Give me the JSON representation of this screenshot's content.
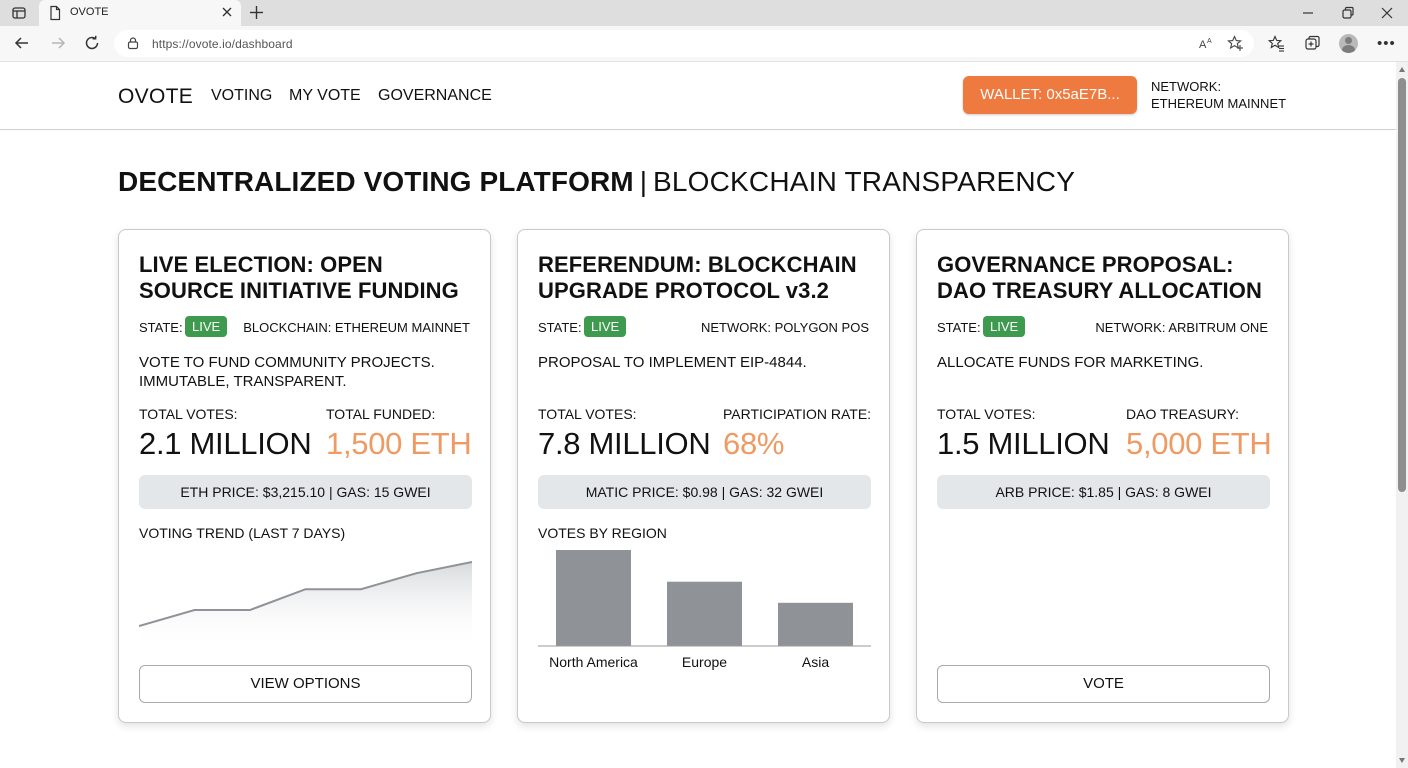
{
  "browser": {
    "tab_title": "OVOTE",
    "url": "https://ovote.io/dashboard"
  },
  "header": {
    "logo": "OVOTE",
    "nav": [
      "VOTING",
      "MY VOTE",
      "GOVERNANCE"
    ],
    "wallet_label": "WALLET: 0x5aE7B...",
    "network_line1": "NETWORK:",
    "network_line2": "ETHEREUM MAINNET"
  },
  "page": {
    "title_strong": "DECENTRALIZED VOTING PLATFORM",
    "title_sep": "|",
    "title_light": "BLOCKCHAIN TRANSPARENCY"
  },
  "cards": [
    {
      "title": "LIVE ELECTION: OPEN SOURCE INITIATIVE FUNDING",
      "state_label": "STATE:",
      "state": "LIVE",
      "chain": "BLOCKCHAIN: ETHEREUM MAINNET",
      "description": "VOTE TO FUND COMMUNITY PROJECTS. IMMUTABLE, TRANSPARENT.",
      "stat1_label": "TOTAL VOTES:",
      "stat1_value": "2.1 MILLION",
      "stat2_label": "TOTAL FUNDED:",
      "stat2_value": "1,500 ETH",
      "price_bar": "ETH PRICE: $3,215.10  |  GAS: 15 GWEI",
      "chart_title": "VOTING TREND (LAST 7 DAYS)",
      "button": "VIEW OPTIONS"
    },
    {
      "title": "REFERENDUM: BLOCKCHAIN UPGRADE PROTOCOL v3.2",
      "state_label": "STATE:",
      "state": "LIVE",
      "chain": "NETWORK: POLYGON POS",
      "description": "PROPOSAL TO IMPLEMENT EIP-4844.",
      "stat1_label": "TOTAL VOTES:",
      "stat1_value": "7.8 MILLION",
      "stat2_label": "PARTICIPATION RATE:",
      "stat2_value": "68%",
      "price_bar": "MATIC PRICE: $0.98  |  GAS: 32 GWEI",
      "chart_title": "VOTES BY REGION"
    },
    {
      "title": "GOVERNANCE PROPOSAL: DAO TREASURY ALLOCATION",
      "state_label": "STATE:",
      "state": "LIVE",
      "chain": "NETWORK: ARBITRUM ONE",
      "description": "ALLOCATE FUNDS FOR MARKETING.",
      "stat1_label": "TOTAL VOTES:",
      "stat1_value": "1.5 MILLION",
      "stat2_label": "DAO TREASURY:",
      "stat2_value": "5,000 ETH",
      "price_bar": "ARB PRICE: $1.85  |  GAS: 8 GWEI",
      "button": "VOTE"
    }
  ],
  "charts": {
    "trend": {
      "type": "area",
      "values": [
        1,
        2,
        2,
        3.3,
        3.3,
        4.3,
        5
      ],
      "ylim": [
        0,
        5.5
      ]
    },
    "region": {
      "type": "bar",
      "categories": [
        "North America",
        "Europe",
        "Asia"
      ],
      "values": [
        100,
        67,
        45
      ],
      "ylim": [
        0,
        100
      ]
    }
  },
  "colors": {
    "accent_orange": "#ee7a3f",
    "value_orange": "#ef9a63",
    "live_green": "#3e9a4f",
    "chart_gray": "#8f9296"
  }
}
